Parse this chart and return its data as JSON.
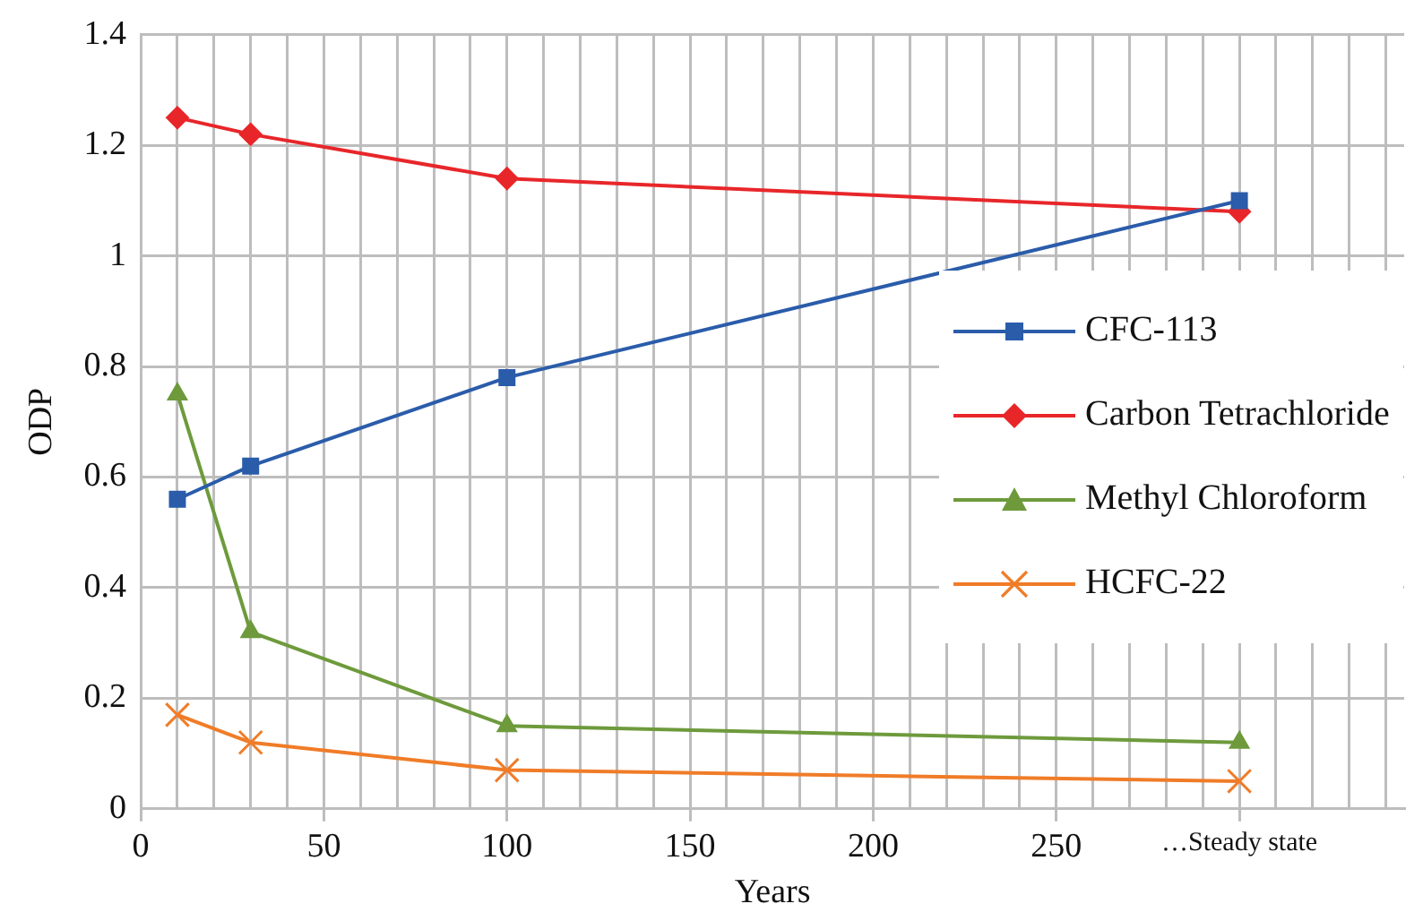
{
  "chart_data": {
    "type": "line",
    "xlabel": "Years",
    "ylabel": "ODP",
    "x": [
      10,
      30,
      100,
      300
    ],
    "series": [
      {
        "name": "CFC-113",
        "color": "#2a5caa",
        "values": [
          0.56,
          0.62,
          0.78,
          1.1
        ],
        "marker": "square"
      },
      {
        "name": "Carbon Tetrachloride",
        "color": "#e8262a",
        "values": [
          1.25,
          1.22,
          1.14,
          1.08
        ],
        "marker": "diamond"
      },
      {
        "name": "Methyl Chloroform",
        "color": "#6e9a3c",
        "values": [
          0.75,
          0.32,
          0.15,
          0.12
        ],
        "marker": "triangle"
      },
      {
        "name": "HCFC-22",
        "color": "#f07c28",
        "values": [
          0.17,
          0.12,
          0.07,
          0.05
        ],
        "marker": "cross"
      }
    ],
    "xlim": [
      0,
      345
    ],
    "xticks": [
      0,
      {
        "value": 10,
        "label": null
      },
      {
        "value": 20,
        "label": null
      },
      {
        "value": 30,
        "label": null
      },
      {
        "value": 40,
        "label": null
      },
      50,
      {
        "value": 60,
        "label": null
      },
      {
        "value": 70,
        "label": null
      },
      {
        "value": 80,
        "label": null
      },
      {
        "value": 90,
        "label": null
      },
      100,
      {
        "value": 110,
        "label": null
      },
      {
        "value": 120,
        "label": null
      },
      {
        "value": 130,
        "label": null
      },
      {
        "value": 140,
        "label": null
      },
      150,
      {
        "value": 160,
        "label": null
      },
      {
        "value": 170,
        "label": null
      },
      {
        "value": 180,
        "label": null
      },
      {
        "value": 190,
        "label": null
      },
      200,
      {
        "value": 210,
        "label": null
      },
      {
        "value": 220,
        "label": null
      },
      {
        "value": 230,
        "label": null
      },
      {
        "value": 240,
        "label": null
      },
      250,
      {
        "value": 260,
        "label": null
      },
      {
        "value": 270,
        "label": null
      },
      {
        "value": 280,
        "label": null
      },
      {
        "value": 290,
        "label": null
      },
      {
        "value": 300,
        "label": "…Steady state"
      },
      {
        "value": 310,
        "label": null
      },
      {
        "value": 320,
        "label": null
      },
      {
        "value": 330,
        "label": null
      },
      {
        "value": 340,
        "label": null
      }
    ],
    "ylim": [
      0,
      1.4
    ],
    "yticks": [
      0,
      0.2,
      0.4,
      0.6,
      0.8,
      1,
      1.2,
      1.4
    ],
    "grid": true,
    "legend": "right",
    "line_style": "solid"
  }
}
